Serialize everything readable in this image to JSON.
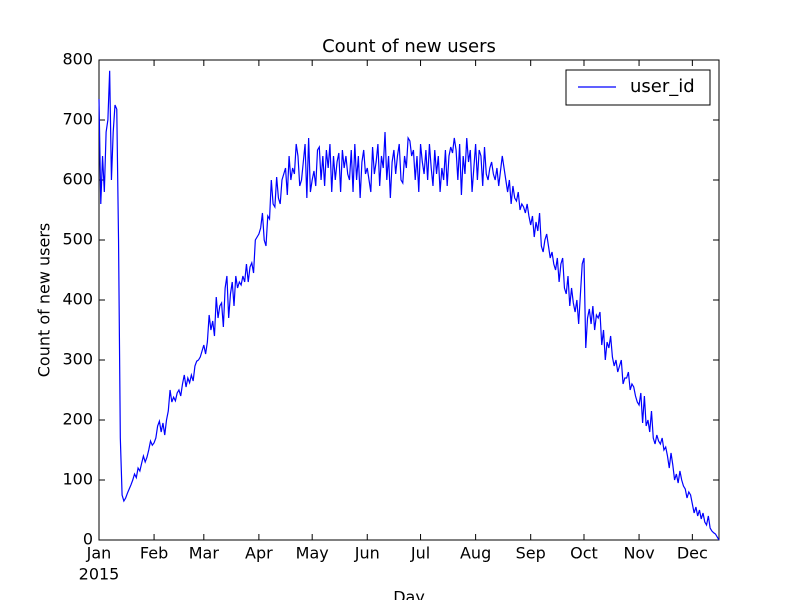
{
  "chart_data": {
    "type": "line",
    "title": "Count of new users",
    "xlabel": "Day",
    "ylabel": "Count of new users",
    "year_label": "2015",
    "legend": "upper right",
    "x": [
      0,
      1,
      2,
      3,
      4,
      5,
      6,
      7,
      8,
      9,
      10,
      11,
      12,
      13,
      14,
      15,
      16,
      17,
      18,
      19,
      20,
      21,
      22,
      23,
      24,
      25,
      26,
      27,
      28,
      29,
      30,
      31,
      32,
      33,
      34,
      35,
      36,
      37,
      38,
      39,
      40,
      41,
      42,
      43,
      44,
      45,
      46,
      47,
      48,
      49,
      50,
      51,
      52,
      53,
      54,
      55,
      56,
      57,
      58,
      59,
      60,
      61,
      62,
      63,
      64,
      65,
      66,
      67,
      68,
      69,
      70,
      71,
      72,
      73,
      74,
      75,
      76,
      77,
      78,
      79,
      80,
      81,
      82,
      83,
      84,
      85,
      86,
      87,
      88,
      89,
      90,
      91,
      92,
      93,
      94,
      95,
      96,
      97,
      98,
      99,
      100,
      101,
      102,
      103,
      104,
      105,
      106,
      107,
      108,
      109,
      110,
      111,
      112,
      113,
      114,
      115,
      116,
      117,
      118,
      119,
      120,
      121,
      122,
      123,
      124,
      125,
      126,
      127,
      128,
      129,
      130,
      131,
      132,
      133,
      134,
      135,
      136,
      137,
      138,
      139,
      140,
      141,
      142,
      143,
      144,
      145,
      146,
      147,
      148,
      149,
      150,
      151,
      152,
      153,
      154,
      155,
      156,
      157,
      158,
      159,
      160,
      161,
      162,
      163,
      164,
      165,
      166,
      167,
      168,
      169,
      170,
      171,
      172,
      173,
      174,
      175,
      176,
      177,
      178,
      179,
      180,
      181,
      182,
      183,
      184,
      185,
      186,
      187,
      188,
      189,
      190,
      191,
      192,
      193,
      194,
      195,
      196,
      197,
      198,
      199,
      200,
      201,
      202,
      203,
      204,
      205,
      206,
      207,
      208,
      209,
      210,
      211,
      212,
      213,
      214,
      215,
      216,
      217,
      218,
      219,
      220,
      221,
      222,
      223,
      224,
      225,
      226,
      227,
      228,
      229,
      230,
      231,
      232,
      233,
      234,
      235,
      236,
      237,
      238,
      239,
      240,
      241,
      242,
      243,
      244,
      245,
      246,
      247,
      248,
      249,
      250,
      251,
      252,
      253,
      254,
      255,
      256,
      257,
      258,
      259,
      260,
      261,
      262,
      263,
      264,
      265,
      266,
      267,
      268,
      269,
      270,
      271,
      272,
      273,
      274,
      275,
      276,
      277,
      278,
      279,
      280,
      281,
      282,
      283,
      284,
      285,
      286,
      287,
      288,
      289,
      290,
      291,
      292,
      293,
      294,
      295,
      296,
      297,
      298,
      299,
      300,
      301,
      302,
      303,
      304,
      305,
      306,
      307,
      308,
      309,
      310,
      311,
      312,
      313,
      314,
      315,
      316,
      317,
      318,
      319,
      320,
      321,
      322,
      323,
      324,
      325,
      326,
      327,
      328,
      329,
      330,
      331,
      332,
      333,
      334,
      335,
      336,
      337,
      338,
      339,
      340,
      341,
      342,
      343,
      344,
      345,
      346,
      347,
      348,
      349
    ],
    "series": [
      {
        "name": "user_id",
        "color": "#0000ff",
        "values": [
          735,
          560,
          640,
          580,
          680,
          700,
          782,
          600,
          680,
          725,
          718,
          500,
          170,
          75,
          65,
          70,
          78,
          85,
          92,
          100,
          110,
          104,
          120,
          115,
          128,
          140,
          130,
          138,
          150,
          165,
          158,
          162,
          170,
          190,
          198,
          180,
          195,
          175,
          200,
          215,
          250,
          230,
          238,
          232,
          245,
          250,
          240,
          260,
          275,
          255,
          270,
          262,
          275,
          265,
          290,
          298,
          300,
          305,
          315,
          325,
          310,
          330,
          375,
          350,
          365,
          340,
          405,
          370,
          390,
          395,
          355,
          420,
          440,
          370,
          410,
          430,
          390,
          440,
          420,
          430,
          425,
          440,
          430,
          460,
          430,
          455,
          462,
          445,
          500,
          505,
          510,
          520,
          545,
          500,
          490,
          540,
          535,
          600,
          560,
          555,
          605,
          570,
          560,
          600,
          610,
          620,
          575,
          640,
          600,
          620,
          610,
          660,
          640,
          590,
          600,
          630,
          660,
          570,
          670,
          580,
          600,
          615,
          590,
          650,
          655,
          600,
          640,
          590,
          650,
          620,
          660,
          580,
          640,
          600,
          630,
          645,
          580,
          650,
          620,
          640,
          610,
          600,
          650,
          580,
          660,
          600,
          640,
          570,
          630,
          650,
          610,
          620,
          600,
          580,
          655,
          610,
          630,
          660,
          590,
          640,
          620,
          680,
          600,
          640,
          570,
          630,
          650,
          610,
          640,
          660,
          600,
          595,
          640,
          620,
          670,
          665,
          640,
          650,
          600,
          640,
          580,
          660,
          630,
          610,
          650,
          600,
          660,
          620,
          590,
          650,
          610,
          640,
          580,
          620,
          600,
          650,
          590,
          640,
          655,
          645,
          670,
          650,
          600,
          660,
          575,
          640,
          610,
          670,
          630,
          650,
          580,
          620,
          660,
          600,
          650,
          640,
          590,
          655,
          610,
          600,
          620,
          630,
          610,
          600,
          620,
          590,
          615,
          640,
          620,
          600,
          580,
          600,
          560,
          590,
          570,
          565,
          580,
          550,
          560,
          555,
          545,
          560,
          540,
          525,
          540,
          505,
          530,
          515,
          545,
          490,
          480,
          500,
          510,
          490,
          470,
          480,
          460,
          450,
          470,
          430,
          460,
          470,
          420,
          410,
          440,
          390,
          420,
          395,
          380,
          400,
          360,
          410,
          460,
          470,
          320,
          370,
          385,
          360,
          390,
          350,
          375,
          370,
          380,
          325,
          350,
          300,
          330,
          320,
          340,
          305,
          290,
          300,
          280,
          290,
          300,
          260,
          270,
          270,
          280,
          250,
          260,
          255,
          240,
          230,
          225,
          245,
          195,
          240,
          190,
          200,
          180,
          215,
          170,
          160,
          175,
          165,
          160,
          170,
          150,
          155,
          140,
          120,
          145,
          125,
          100,
          110,
          95,
          115,
          100,
          90,
          85,
          70,
          80,
          75,
          60,
          45,
          55,
          40,
          50,
          35,
          45,
          30,
          25,
          40,
          20,
          15,
          12,
          10,
          5,
          0
        ]
      }
    ],
    "xlim": [
      0,
      349
    ],
    "xticks": [
      {
        "value": 0,
        "label": "Jan"
      },
      {
        "value": 31,
        "label": "Feb"
      },
      {
        "value": 59,
        "label": "Mar"
      },
      {
        "value": 90,
        "label": "Apr"
      },
      {
        "value": 120,
        "label": "May"
      },
      {
        "value": 151,
        "label": "Jun"
      },
      {
        "value": 181,
        "label": "Jul"
      },
      {
        "value": 212,
        "label": "Aug"
      },
      {
        "value": 243,
        "label": "Sep"
      },
      {
        "value": 273,
        "label": "Oct"
      },
      {
        "value": 304,
        "label": "Nov"
      },
      {
        "value": 334,
        "label": "Dec"
      }
    ],
    "ylim": [
      0,
      800
    ],
    "yticks": [
      0,
      100,
      200,
      300,
      400,
      500,
      600,
      700,
      800
    ]
  }
}
